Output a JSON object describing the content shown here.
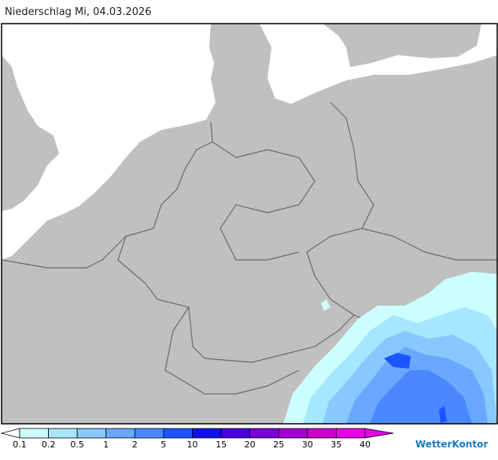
{
  "header": {
    "title": "Niederschlag Mi, 04.03.2026"
  },
  "legend": {
    "labels": [
      "0.1",
      "0.2",
      "0.5",
      "1",
      "2",
      "5",
      "10",
      "15",
      "20",
      "25",
      "30",
      "35",
      "40"
    ],
    "colors": [
      "#ffffff",
      "#ccffff",
      "#a6e6ff",
      "#88c8ff",
      "#6aa8ff",
      "#4a88ff",
      "#1a55ff",
      "#1010e6",
      "#4a00dd",
      "#7a00d6",
      "#a000d0",
      "#cc00cc",
      "#e600e6",
      "#e600e6"
    ]
  },
  "brand": "WetterKontor"
}
